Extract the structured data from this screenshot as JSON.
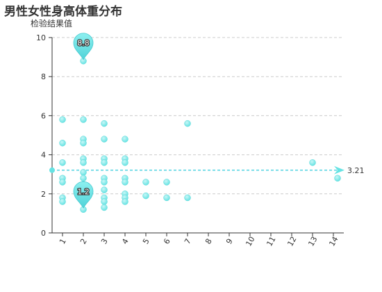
{
  "chart_data": {
    "type": "scatter",
    "title": "男性女性身高体重分布",
    "ylabel": "检验结果值",
    "xlim": [
      1,
      14
    ],
    "ylim": [
      0,
      10
    ],
    "x_ticks": [
      1,
      2,
      3,
      4,
      5,
      6,
      7,
      8,
      9,
      10,
      11,
      12,
      13,
      14
    ],
    "y_ticks": [
      0,
      2,
      4,
      6,
      8,
      10
    ],
    "grid": true,
    "color": "#66E3E3",
    "points": [
      [
        1,
        5.8
      ],
      [
        1,
        4.6
      ],
      [
        1,
        3.6
      ],
      [
        1,
        2.8
      ],
      [
        1,
        2.6
      ],
      [
        1,
        1.8
      ],
      [
        1,
        1.6
      ],
      [
        2,
        8.8
      ],
      [
        2,
        5.8
      ],
      [
        2,
        4.8
      ],
      [
        2,
        4.6
      ],
      [
        2,
        3.8
      ],
      [
        2,
        3.6
      ],
      [
        2,
        3.1
      ],
      [
        2,
        2.8
      ],
      [
        2,
        2.2
      ],
      [
        2,
        1.6
      ],
      [
        2,
        1.2
      ],
      [
        3,
        5.6
      ],
      [
        3,
        4.8
      ],
      [
        3,
        3.8
      ],
      [
        3,
        3.6
      ],
      [
        3,
        2.8
      ],
      [
        3,
        2.6
      ],
      [
        3,
        2.2
      ],
      [
        3,
        1.8
      ],
      [
        3,
        1.6
      ],
      [
        3,
        1.3
      ],
      [
        4,
        4.8
      ],
      [
        4,
        3.8
      ],
      [
        4,
        3.6
      ],
      [
        4,
        2.8
      ],
      [
        4,
        2.6
      ],
      [
        4,
        2.0
      ],
      [
        4,
        1.8
      ],
      [
        4,
        1.6
      ],
      [
        5,
        2.6
      ],
      [
        5,
        1.9
      ],
      [
        6,
        2.6
      ],
      [
        6,
        1.8
      ],
      [
        7,
        5.6
      ],
      [
        7,
        1.8
      ],
      [
        13,
        3.6
      ],
      [
        14.2,
        2.8
      ]
    ],
    "mark_points": [
      {
        "label": "8.8",
        "x": 2,
        "y": 8.8
      },
      {
        "label": "1.2",
        "x": 2,
        "y": 1.2
      }
    ],
    "mark_line": {
      "value": 3.21,
      "label": "3.21"
    }
  }
}
